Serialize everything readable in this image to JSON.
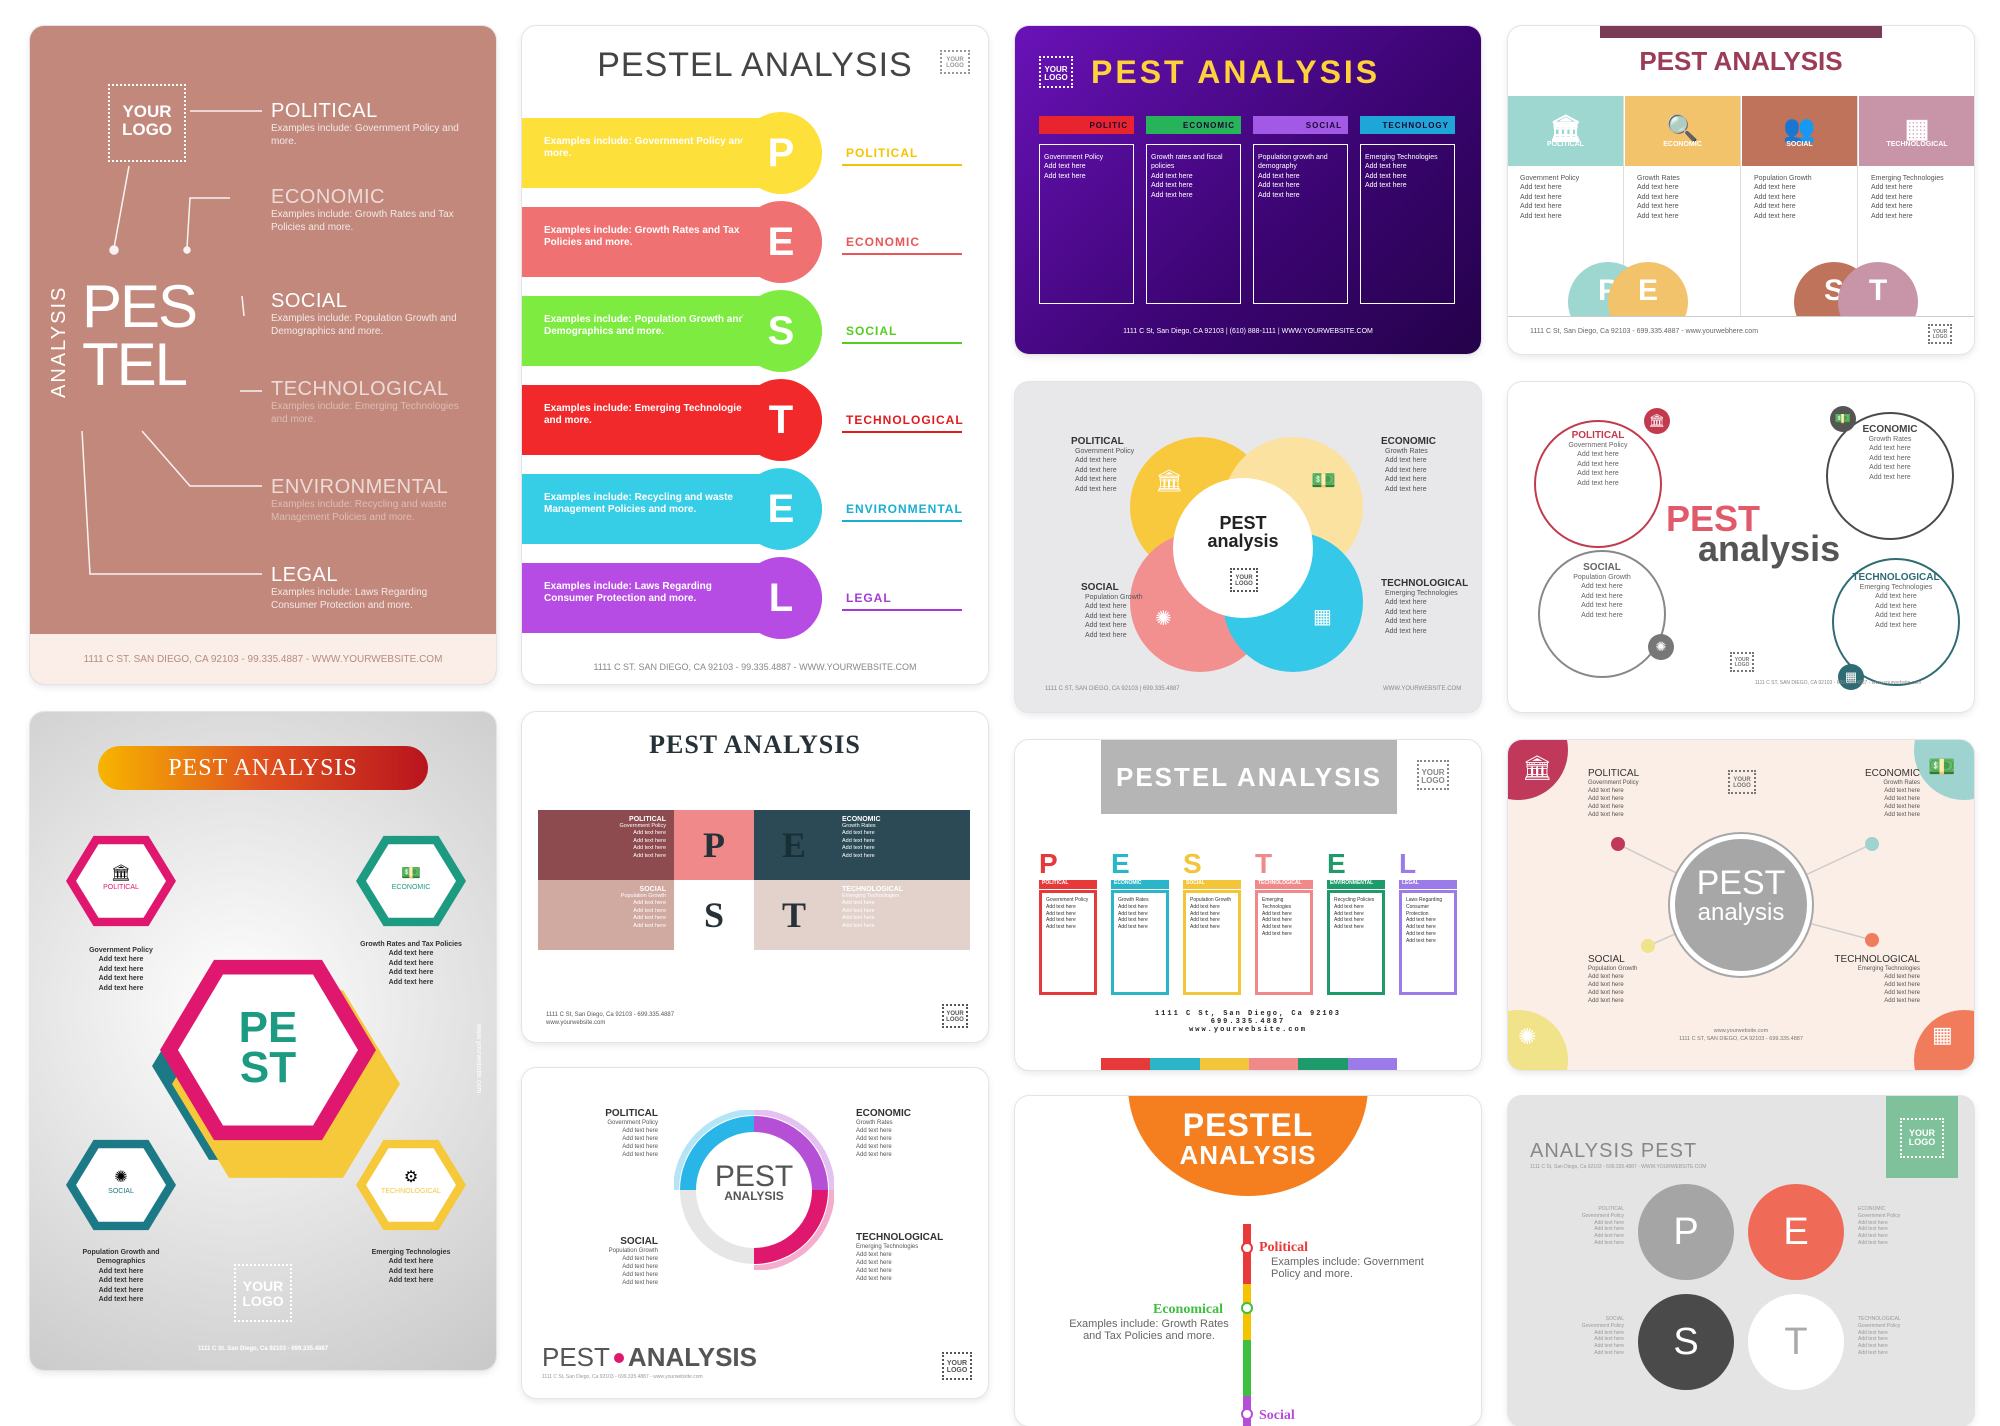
{
  "common": {
    "your": "YOUR",
    "logo": "LOGO",
    "your_logo": "YOUR\nLOGO",
    "add": "Add text here"
  },
  "c1": {
    "political": "POLITICAL",
    "political_desc": "Examples include: Government Policy and more.",
    "economic": "ECONOMIC",
    "economic_desc": "Examples include: Growth Rates and Tax Policies and more.",
    "social": "SOCIAL",
    "social_desc": "Examples include: Population Growth and Demographics and more.",
    "technological": "TECHNOLOGICAL",
    "technological_desc": "Examples include: Emerging Technologies and more.",
    "environmental": "ENVIRONMENTAL",
    "environmental_desc": "Examples include: Recycling and waste Management Policies and more.",
    "legal": "LEGAL",
    "legal_desc": "Examples include: Laws Regarding Consumer Protection and more.",
    "analysis": "ANALYSIS",
    "pes": "PES",
    "tel": "TEL",
    "footer": "1111 C ST. SAN DIEGO, CA 92103 - 99.335.4887 - WWW.YOURWEBSITE.COM"
  },
  "c2": {
    "title": "PESTEL ANALYSIS",
    "rows": [
      {
        "letter": "P",
        "label": "POLITICAL",
        "text": "Examples include: Government Policy and more.",
        "color": "#fde03a",
        "text_color": "#f5c400"
      },
      {
        "letter": "E",
        "label": "ECONOMIC",
        "text": "Examples include: Growth Rates and Tax Policies and more.",
        "color": "#f07171",
        "text_color": "#e85757"
      },
      {
        "letter": "S",
        "label": "SOCIAL",
        "text": "Examples include: Population Growth and Demographics and more.",
        "color": "#7deb3f",
        "text_color": "#55cc22"
      },
      {
        "letter": "T",
        "label": "TECHNOLOGICAL",
        "text": "Examples include: Emerging Technologies and more.",
        "color": "#f2292a",
        "text_color": "#e01c1c"
      },
      {
        "letter": "E",
        "label": "ENVIRONMENTAL",
        "text": "Examples include: Recycling and waste Management Policies and more.",
        "color": "#36cde6",
        "text_color": "#1aaed0"
      },
      {
        "letter": "L",
        "label": "LEGAL",
        "text": "Examples include: Laws Regarding Consumer Protection and more.",
        "color": "#b64ce3",
        "text_color": "#a63ad6"
      }
    ],
    "footer": "1111 C ST. SAN DIEGO, CA 92103 - 99.335.4887 - WWW.YOURWEBSITE.COM"
  },
  "c3": {
    "title": "PEST ANALYSIS",
    "cols": [
      {
        "label": "POLITIC",
        "color": "#e8242e",
        "items": [
          "Government Policy",
          "Add text here",
          "Add text here"
        ]
      },
      {
        "label": "ECONOMIC",
        "color": "#27b35a",
        "items": [
          "Growth rates and fiscal policies",
          "Add text here",
          "Add text here",
          "Add text here"
        ]
      },
      {
        "label": "SOCIAL",
        "color": "#a259e6",
        "items": [
          "Population growth and demography",
          "Add text here",
          "Add text here",
          "Add text here"
        ]
      },
      {
        "label": "TECHNOLOGY",
        "color": "#1fa6d9",
        "items": [
          "Emerging Technologies",
          "Add text here",
          "Add text here",
          "Add text here"
        ]
      }
    ],
    "footer": "1111 C St, San Diego, CA 92103 | (610) 888-1111 | WWW.YOURWEBSITE.COM"
  },
  "c4": {
    "title": "PEST ANALYSIS",
    "cols": [
      {
        "label": "POLITICAL",
        "color": "#9dd7cf",
        "items": [
          "Government Policy",
          "Add text here",
          "Add text here",
          "Add text here",
          "Add text here"
        ]
      },
      {
        "label": "ECONOMIC",
        "color": "#f3c36b",
        "items": [
          "Growth Rates",
          "Add text here",
          "Add text here",
          "Add text here",
          "Add text here"
        ]
      },
      {
        "label": "SOCIAL",
        "color": "#c0735b",
        "items": [
          "Population Growth",
          "Add text here",
          "Add text here",
          "Add text here",
          "Add text here"
        ]
      },
      {
        "label": "TECHNOLOGICAL",
        "color": "#c894a8",
        "items": [
          "Emerging Technologies",
          "Add text here",
          "Add text here",
          "Add text here",
          "Add text here"
        ]
      }
    ],
    "letters": [
      "P",
      "E",
      "S",
      "T"
    ],
    "footer": "1111 C St, San Diego, Ca 92103 - 699.335.4887 - www.yourwebhere.com"
  },
  "c5": {
    "political": "POLITICAL",
    "economic": "ECONOMIC",
    "social": "SOCIAL",
    "technological": "TECHNOLOGICAL",
    "pol_items": [
      "Government Policy",
      "Add text here",
      "Add text here",
      "Add text here",
      "Add text here"
    ],
    "eco_items": [
      "Growth Rates",
      "Add text here",
      "Add text here",
      "Add text here",
      "Add text here"
    ],
    "soc_items": [
      "Population Growth",
      "Add text here",
      "Add text here",
      "Add text here",
      "Add text here"
    ],
    "tec_items": [
      "Emerging Technologies",
      "Add text here",
      "Add text here",
      "Add text here",
      "Add text here"
    ],
    "pest": "PEST",
    "analysis": "analysis",
    "footer_left": "1111 C ST, SAN DIEGO, CA 92103 | 699.335.4887",
    "footer_right": "WWW.YOURWEBSITE.COM"
  },
  "c6": {
    "political": "POLITICAL",
    "economic": "ECONOMIC",
    "social": "SOCIAL",
    "technological": "TECHNOLOGICAL",
    "pol_items": [
      "Government Policy",
      "Add text here",
      "Add text here",
      "Add text here",
      "Add text here"
    ],
    "eco_items": [
      "Growth Rates",
      "Add text here",
      "Add text here",
      "Add text here",
      "Add text here"
    ],
    "soc_items": [
      "Population Growth",
      "Add text here",
      "Add text here",
      "Add text here",
      "Add text here"
    ],
    "tec_items": [
      "Emerging Technologies",
      "Add text here",
      "Add text here",
      "Add text here",
      "Add text here"
    ],
    "pest": "PEST",
    "analysis": "analysis",
    "footer": "1111 C ST, SAN DIEGO, CA 92103 - 699.335.4887 - www.yourwebsite.com"
  },
  "c7": {
    "title": "PEST ANALYSIS",
    "pe": "PE",
    "st": "ST",
    "political": "POLITICAL",
    "economic": "ECONOMIC",
    "social": "SOCIAL",
    "technological": "TECHNOLOGICAL",
    "pol_items": [
      "Government Policy",
      "Add text here",
      "Add text here",
      "Add text here",
      "Add text here"
    ],
    "eco_items": [
      "Growth Rates and Tax Policies",
      "Add text here",
      "Add text here",
      "Add text here",
      "Add text here"
    ],
    "soc_items": [
      "Population Growth and Demographics",
      "Add text here",
      "Add text here",
      "Add text here",
      "Add text here"
    ],
    "tec_items": [
      "Emerging Technologies",
      "Add text here",
      "Add text here",
      "Add text here"
    ],
    "side": "www.yourwebsite.com",
    "footer": "1111 C St. San Diego, Ca 92103 - 699.335.4887"
  },
  "c8": {
    "title": "PEST ANALYSIS",
    "political": "POLITICAL",
    "economic": "ECONOMIC",
    "social": "SOCIAL",
    "technological": "TECHNOLOGICAL",
    "pol_items": [
      "Government Policy",
      "Add text here",
      "Add text here",
      "Add text here",
      "Add text here"
    ],
    "eco_items": [
      "Growth Rates",
      "Add text here",
      "Add text here",
      "Add text here",
      "Add text here"
    ],
    "soc_items": [
      "Population Growth",
      "Add text here",
      "Add text here",
      "Add text here",
      "Add text here"
    ],
    "tec_items": [
      "Emerging Technologies",
      "Add text here",
      "Add text here",
      "Add text here",
      "Add text here"
    ],
    "letters": [
      "P",
      "E",
      "S",
      "T"
    ],
    "footer1": "1111 C St, San Diego, Ca 92103 - 699.335.4887",
    "footer2": "www.yourwebsite.com"
  },
  "c9": {
    "title": "PESTEL ANALYSIS",
    "cols": [
      {
        "letter": "P",
        "label": "POLITICAL",
        "color": "#e63a3a",
        "items": [
          "Government Policy",
          "Add text here",
          "Add text here",
          "Add text here",
          "Add text here"
        ]
      },
      {
        "letter": "E",
        "label": "ECONOMIC",
        "color": "#2ab5c8",
        "items": [
          "Growth Rates",
          "Add text here",
          "Add text here",
          "Add text here",
          "Add text here"
        ]
      },
      {
        "letter": "S",
        "label": "SOCIAL",
        "color": "#f2c53a",
        "items": [
          "Population Growth",
          "Add text here",
          "Add text here",
          "Add text here",
          "Add text here"
        ]
      },
      {
        "letter": "T",
        "label": "TECHNOLOGICAL",
        "color": "#f08a8a",
        "items": [
          "Emerging Technologies",
          "Add text here",
          "Add text here",
          "Add text here",
          "Add text here"
        ]
      },
      {
        "letter": "E",
        "label": "ENVIRONMENTAL",
        "color": "#1f9a6a",
        "items": [
          "Recycling Policies",
          "Add text here",
          "Add text here",
          "Add text here",
          "Add text here"
        ]
      },
      {
        "letter": "L",
        "label": "LEGAL",
        "color": "#9a7be8",
        "items": [
          "Laws Regarding Consumer Protection",
          "Add text here",
          "Add text here",
          "Add text here",
          "Add text here"
        ]
      }
    ],
    "footer": "1111 C St, San Diego, Ca 92103\n699.335.4887\nwww.yourwebsite.com"
  },
  "c10": {
    "political": "POLITICAL",
    "economic": "ECONOMIC",
    "social": "SOCIAL",
    "technological": "TECHNOLOGICAL",
    "pol_items": [
      "Government Policy",
      "Add text here",
      "Add text here",
      "Add text here",
      "Add text here"
    ],
    "eco_items": [
      "Growth Rates",
      "Add text here",
      "Add text here",
      "Add text here",
      "Add text here"
    ],
    "soc_items": [
      "Population Growth",
      "Add text here",
      "Add text here",
      "Add text here",
      "Add text here"
    ],
    "tec_items": [
      "Emerging Technologies",
      "Add text here",
      "Add text here",
      "Add text here",
      "Add text here"
    ],
    "pest": "PEST",
    "analysis": "analysis",
    "footer1": "www.yourwebsite.com",
    "footer2": "1111 C ST, SAN DIEGO, CA 92103 - 699.335.4887"
  },
  "c11": {
    "political": "POLITICAL",
    "economic": "ECONOMIC",
    "social": "SOCIAL",
    "technological": "TECHNOLOGICAL",
    "pol_items": [
      "Government Policy",
      "Add text here",
      "Add text here",
      "Add text here",
      "Add text here"
    ],
    "eco_items": [
      "Growth Rates",
      "Add text here",
      "Add text here",
      "Add text here",
      "Add text here"
    ],
    "soc_items": [
      "Population Growth",
      "Add text here",
      "Add text here",
      "Add text here",
      "Add text here"
    ],
    "tec_items": [
      "Emerging Technologies",
      "Add text here",
      "Add text here",
      "Add text here",
      "Add text here"
    ],
    "pest": "PEST",
    "analysis": "ANALYSIS",
    "bottom_pest": "PEST",
    "bottom_analysis": "ANALYSIS",
    "bottom_sub": "1111 C St, San Diego, Ca 92103 - 699.335.4887 - www.yourwebsite.com"
  },
  "c12": {
    "pestel": "PESTEL",
    "analysis": "ANALYSIS",
    "political": "Political",
    "political_desc": "Examples include: Government Policy and more.",
    "economical": "Economical",
    "economical_desc": "Examples include: Growth Rates and Tax Policies and more.",
    "social": "Social"
  },
  "c13": {
    "title": "ANALYSIS PEST",
    "sub": "1111 C St, San Diego, Ca 92103 - 699.335.4887 - WWW.YOURWEBSITE.COM",
    "letters": [
      "P",
      "E",
      "S",
      "T"
    ],
    "political": "POLITICAL",
    "economic": "ECONOMIC",
    "social": "SOCIAL",
    "technological": "TECHNOLOGICAL",
    "items": [
      "Government Policy",
      "Add text here",
      "Add text here",
      "Add text here",
      "Add text here"
    ]
  }
}
